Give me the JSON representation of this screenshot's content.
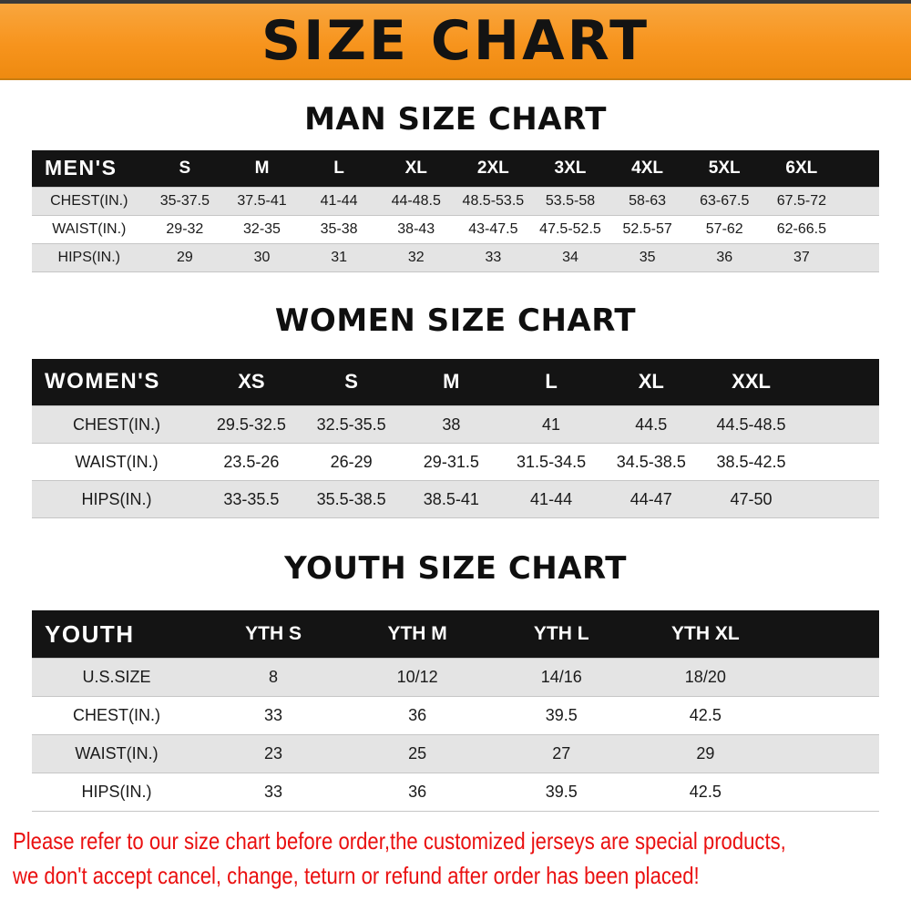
{
  "banner": {
    "title": "SIZE CHART",
    "bg_color": "#f7941d",
    "text_color": "#131313"
  },
  "sections": [
    {
      "heading": "MAN SIZE CHART",
      "corner_label": "MEN'S",
      "columns": [
        "S",
        "M",
        "L",
        "XL",
        "2XL",
        "3XL",
        "4XL",
        "5XL",
        "6XL"
      ],
      "rows": [
        {
          "label": "CHEST(IN.)",
          "values": [
            "35-37.5",
            "37.5-41",
            "41-44",
            "44-48.5",
            "48.5-53.5",
            "53.5-58",
            "58-63",
            "63-67.5",
            "67.5-72"
          ]
        },
        {
          "label": "WAIST(IN.)",
          "values": [
            "29-32",
            "32-35",
            "35-38",
            "38-43",
            "43-47.5",
            "47.5-52.5",
            "52.5-57",
            "57-62",
            "62-66.5"
          ]
        },
        {
          "label": "HIPS(IN.)",
          "values": [
            "29",
            "30",
            "31",
            "32",
            "33",
            "34",
            "35",
            "36",
            "37"
          ]
        }
      ]
    },
    {
      "heading": "WOMEN SIZE CHART",
      "corner_label": "WOMEN'S",
      "columns": [
        "XS",
        "S",
        "M",
        "L",
        "XL",
        "XXL"
      ],
      "rows": [
        {
          "label": "CHEST(IN.)",
          "values": [
            "29.5-32.5",
            "32.5-35.5",
            "38",
            "41",
            "44.5",
            "44.5-48.5"
          ]
        },
        {
          "label": "WAIST(IN.)",
          "values": [
            "23.5-26",
            "26-29",
            "29-31.5",
            "31.5-34.5",
            "34.5-38.5",
            "38.5-42.5"
          ]
        },
        {
          "label": "HIPS(IN.)",
          "values": [
            "33-35.5",
            "35.5-38.5",
            "38.5-41",
            "41-44",
            "44-47",
            "47-50"
          ]
        }
      ]
    },
    {
      "heading": "YOUTH SIZE CHART",
      "corner_label": "YOUTH",
      "columns": [
        "YTH S",
        "YTH M",
        "YTH L",
        "YTH XL"
      ],
      "rows": [
        {
          "label": "U.S.SIZE",
          "values": [
            "8",
            "10/12",
            "14/16",
            "18/20"
          ]
        },
        {
          "label": "CHEST(IN.)",
          "values": [
            "33",
            "36",
            "39.5",
            "42.5"
          ]
        },
        {
          "label": "WAIST(IN.)",
          "values": [
            "23",
            "25",
            "27",
            "29"
          ]
        },
        {
          "label": "HIPS(IN.)",
          "values": [
            "33",
            "36",
            "39.5",
            "42.5"
          ]
        }
      ]
    }
  ],
  "footer": {
    "line1": "Please refer to our size chart before order,the customized jerseys are special products,",
    "line2": "we don't accept cancel, change, teturn or refund after order has been placed!",
    "text_color": "#ea1010"
  }
}
